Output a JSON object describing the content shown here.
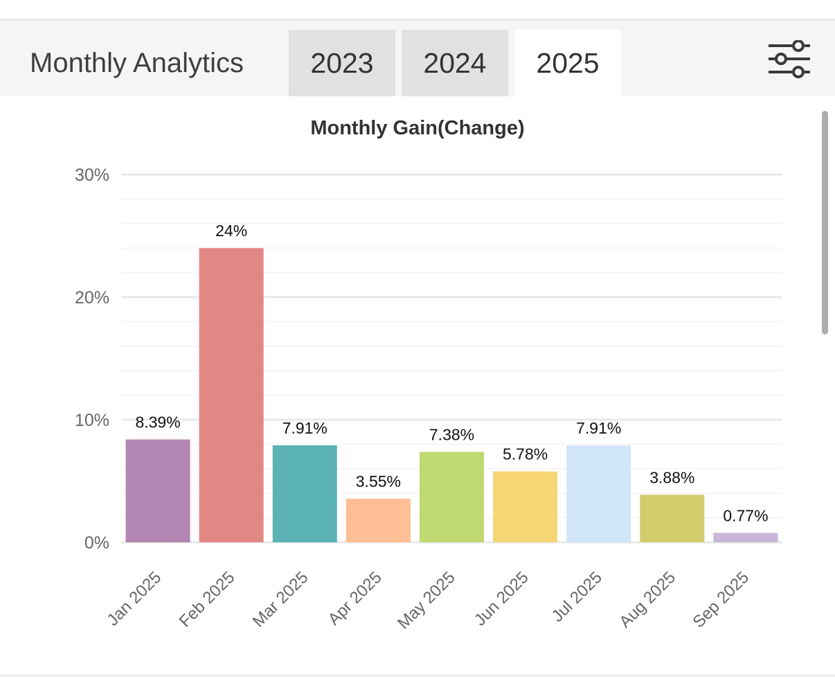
{
  "header": {
    "title": "Monthly Analytics",
    "tabs": [
      {
        "label": "2023",
        "active": false
      },
      {
        "label": "2024",
        "active": false
      },
      {
        "label": "2025",
        "active": true
      }
    ],
    "settings_icon": "sliders-icon"
  },
  "chart_data": {
    "type": "bar",
    "title": "Monthly Gain(Change)",
    "xlabel": "",
    "ylabel": "",
    "ylim": [
      0,
      30
    ],
    "yticks": [
      "0%",
      "10%",
      "20%",
      "30%"
    ],
    "grid": true,
    "legend": "none",
    "categories": [
      "Jan 2025",
      "Feb 2025",
      "Mar 2025",
      "Apr 2025",
      "May 2025",
      "Jun 2025",
      "Jul 2025",
      "Aug 2025",
      "Sep 2025"
    ],
    "values": [
      8.39,
      24,
      7.91,
      3.55,
      7.38,
      5.78,
      7.91,
      3.88,
      0.77
    ],
    "data_labels": [
      "8.39%",
      "24%",
      "7.91%",
      "3.55%",
      "7.38%",
      "5.78%",
      "7.91%",
      "3.88%",
      "0.77%"
    ],
    "colors": [
      "#b486b3",
      "#e18784",
      "#5bb3b3",
      "#ffbe94",
      "#bfd86f",
      "#f6d574",
      "#d1e6f7",
      "#d2cc6c",
      "#c7b6d8"
    ]
  }
}
